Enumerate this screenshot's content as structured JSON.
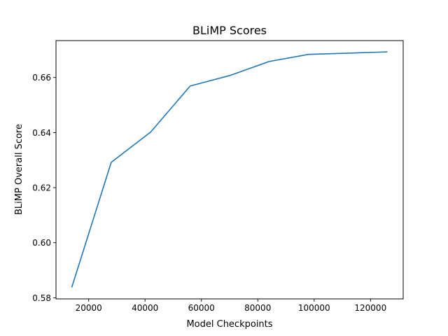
{
  "chart_data": {
    "type": "line",
    "title": "BLiMP Scores",
    "xlabel": "Model Checkpoints",
    "ylabel": "BLiMP Overall Score",
    "xlim": [
      8400,
      131600
    ],
    "ylim": [
      0.5796,
      0.6734
    ],
    "xticks": [
      20000,
      40000,
      60000,
      80000,
      100000,
      120000
    ],
    "xtick_labels": [
      "20000",
      "40000",
      "60000",
      "80000",
      "100000",
      "120000"
    ],
    "yticks": [
      0.58,
      0.6,
      0.62,
      0.64,
      0.66
    ],
    "ytick_labels": [
      "0.58",
      "0.60",
      "0.62",
      "0.64",
      "0.66"
    ],
    "grid": false,
    "series": [
      {
        "color": "#1f77b4",
        "x": [
          14000,
          28000,
          42000,
          56000,
          70000,
          84000,
          98000,
          126000
        ],
        "y": [
          0.5838,
          0.6292,
          0.6402,
          0.6569,
          0.6607,
          0.6658,
          0.6684,
          0.6693
        ]
      }
    ]
  }
}
